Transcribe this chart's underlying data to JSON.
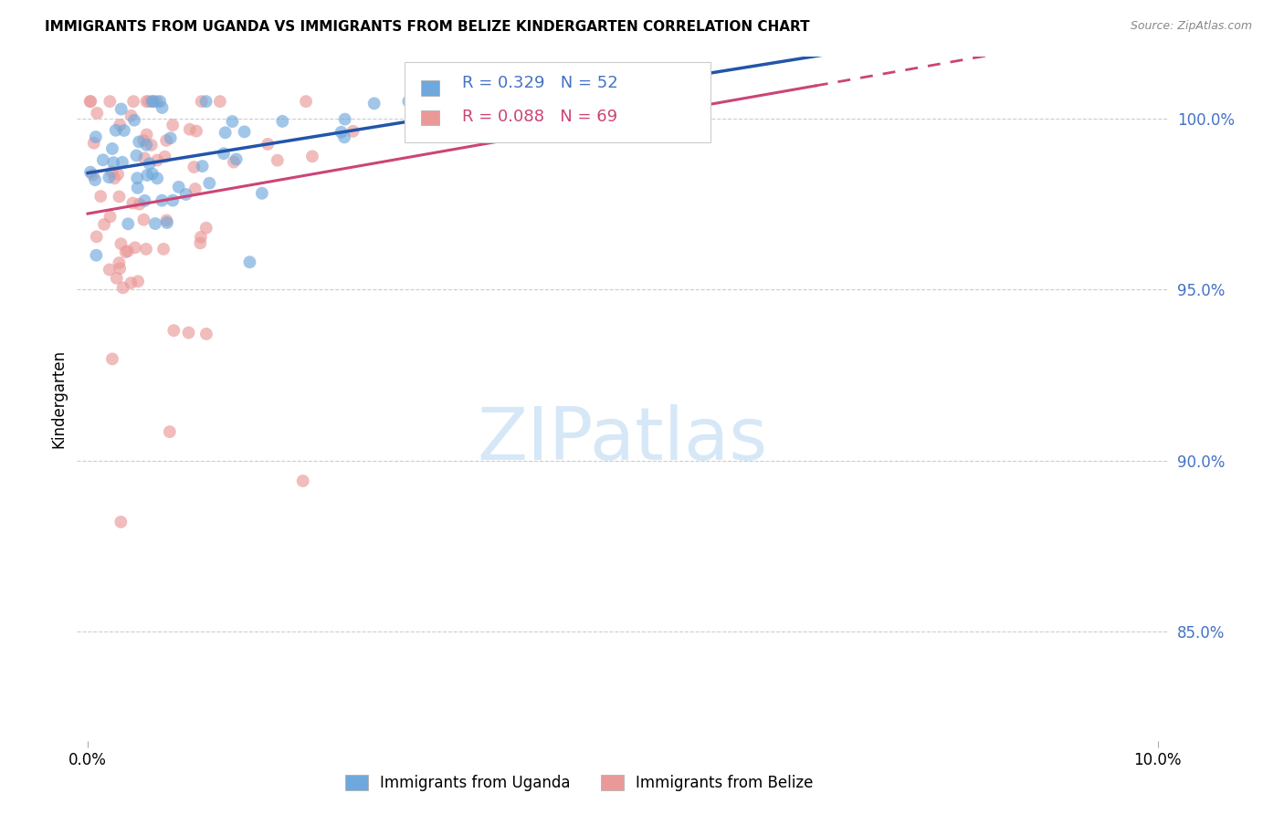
{
  "title": "IMMIGRANTS FROM UGANDA VS IMMIGRANTS FROM BELIZE KINDERGARTEN CORRELATION CHART",
  "source": "Source: ZipAtlas.com",
  "ylabel": "Kindergarten",
  "xlim": [
    0.0,
    0.1
  ],
  "ylim": [
    0.818,
    1.018
  ],
  "y_ticks": [
    1.0,
    0.95,
    0.9,
    0.85
  ],
  "y_tick_labels": [
    "100.0%",
    "95.0%",
    "90.0%",
    "85.0%"
  ],
  "uganda_R": 0.329,
  "uganda_N": 52,
  "belize_R": 0.088,
  "belize_N": 69,
  "uganda_color": "#6fa8dc",
  "belize_color": "#ea9999",
  "trendline_uganda_color": "#2255aa",
  "trendline_belize_color": "#cc4477",
  "background_color": "#ffffff",
  "legend_label_uganda": "Immigrants from Uganda",
  "legend_label_belize": "Immigrants from Belize",
  "grid_color": "#cccccc",
  "right_tick_color": "#4472c4",
  "watermark_color": "#d6e8f7"
}
